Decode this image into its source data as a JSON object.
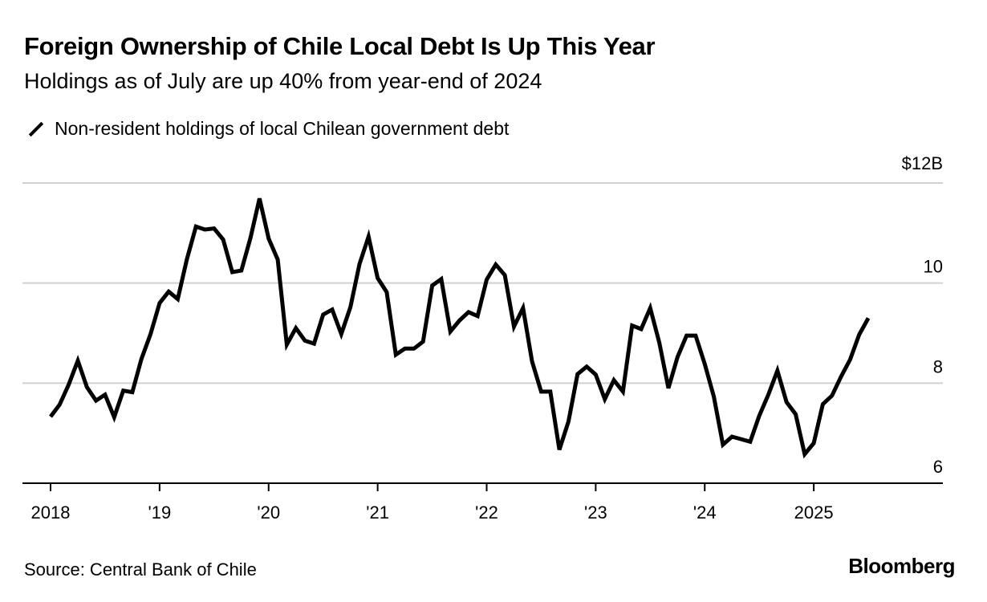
{
  "header": {
    "title": "Foreign Ownership of Chile Local Debt Is Up This Year",
    "subtitle": "Holdings as of July are up 40% from year-end of 2024"
  },
  "legend": {
    "label": "Non-resident holdings of local Chilean government debt"
  },
  "footer": {
    "source": "Source: Central Bank of Chile",
    "brand": "Bloomberg"
  },
  "chart_data": {
    "type": "line",
    "title": "Foreign Ownership of Chile Local Debt Is Up This Year",
    "subtitle": "Holdings as of July are up 40% from year-end of 2024",
    "xlabel": "",
    "ylabel": "",
    "ylim": [
      6,
      12
    ],
    "xlim": [
      "2018-01",
      "2026-05"
    ],
    "grid": true,
    "legend_position": "top-left",
    "line_color": "#000000",
    "y_ticks": [
      {
        "value": 12,
        "label": "$12B"
      },
      {
        "value": 10,
        "label": "10"
      },
      {
        "value": 8,
        "label": "8"
      },
      {
        "value": 6,
        "label": "6"
      }
    ],
    "x_ticks": [
      {
        "date": "2018-01",
        "label": "2018"
      },
      {
        "date": "2019-01",
        "label": "'19"
      },
      {
        "date": "2020-01",
        "label": "'20"
      },
      {
        "date": "2021-01",
        "label": "'21"
      },
      {
        "date": "2022-01",
        "label": "'22"
      },
      {
        "date": "2023-01",
        "label": "'23"
      },
      {
        "date": "2024-01",
        "label": "'24"
      },
      {
        "date": "2025-01",
        "label": "2025"
      }
    ],
    "series": [
      {
        "name": "Non-resident holdings of local Chilean government debt",
        "points": [
          [
            "2018-01",
            7.33
          ],
          [
            "2018-02",
            7.57
          ],
          [
            "2018-03",
            7.97
          ],
          [
            "2018-04",
            8.45
          ],
          [
            "2018-05",
            7.92
          ],
          [
            "2018-06",
            7.65
          ],
          [
            "2018-07",
            7.77
          ],
          [
            "2018-08",
            7.32
          ],
          [
            "2018-09",
            7.85
          ],
          [
            "2018-10",
            7.82
          ],
          [
            "2018-11",
            8.48
          ],
          [
            "2018-12",
            8.98
          ],
          [
            "2019-01",
            9.6
          ],
          [
            "2019-02",
            9.83
          ],
          [
            "2019-03",
            9.68
          ],
          [
            "2019-04",
            10.47
          ],
          [
            "2019-05",
            11.13
          ],
          [
            "2019-06",
            11.07
          ],
          [
            "2019-07",
            11.09
          ],
          [
            "2019-08",
            10.87
          ],
          [
            "2019-09",
            10.22
          ],
          [
            "2019-10",
            10.25
          ],
          [
            "2019-11",
            10.9
          ],
          [
            "2019-12",
            11.69
          ],
          [
            "2020-01",
            10.89
          ],
          [
            "2020-02",
            10.47
          ],
          [
            "2020-03",
            8.77
          ],
          [
            "2020-04",
            9.1
          ],
          [
            "2020-05",
            8.85
          ],
          [
            "2020-06",
            8.79
          ],
          [
            "2020-07",
            9.37
          ],
          [
            "2020-08",
            9.47
          ],
          [
            "2020-09",
            8.98
          ],
          [
            "2020-10",
            9.52
          ],
          [
            "2020-11",
            10.38
          ],
          [
            "2020-12",
            10.93
          ],
          [
            "2021-01",
            10.1
          ],
          [
            "2021-02",
            9.82
          ],
          [
            "2021-03",
            8.57
          ],
          [
            "2021-04",
            8.69
          ],
          [
            "2021-05",
            8.69
          ],
          [
            "2021-06",
            8.83
          ],
          [
            "2021-07",
            9.95
          ],
          [
            "2021-08",
            10.08
          ],
          [
            "2021-09",
            9.03
          ],
          [
            "2021-10",
            9.25
          ],
          [
            "2021-11",
            9.42
          ],
          [
            "2021-12",
            9.34
          ],
          [
            "2022-01",
            10.07
          ],
          [
            "2022-02",
            10.37
          ],
          [
            "2022-03",
            10.16
          ],
          [
            "2022-04",
            9.13
          ],
          [
            "2022-05",
            9.5
          ],
          [
            "2022-06",
            8.43
          ],
          [
            "2022-07",
            7.83
          ],
          [
            "2022-08",
            7.83
          ],
          [
            "2022-09",
            6.67
          ],
          [
            "2022-10",
            7.23
          ],
          [
            "2022-11",
            8.18
          ],
          [
            "2022-12",
            8.33
          ],
          [
            "2023-01",
            8.17
          ],
          [
            "2023-02",
            7.68
          ],
          [
            "2023-03",
            8.06
          ],
          [
            "2023-04",
            7.83
          ],
          [
            "2023-05",
            9.15
          ],
          [
            "2023-06",
            9.08
          ],
          [
            "2023-07",
            9.5
          ],
          [
            "2023-08",
            8.81
          ],
          [
            "2023-09",
            7.9
          ],
          [
            "2023-10",
            8.52
          ],
          [
            "2023-11",
            8.95
          ],
          [
            "2023-12",
            8.95
          ],
          [
            "2024-01",
            8.38
          ],
          [
            "2024-02",
            7.73
          ],
          [
            "2024-03",
            6.77
          ],
          [
            "2024-04",
            6.93
          ],
          [
            "2024-05",
            6.88
          ],
          [
            "2024-06",
            6.83
          ],
          [
            "2024-07",
            7.35
          ],
          [
            "2024-08",
            7.77
          ],
          [
            "2024-09",
            8.25
          ],
          [
            "2024-10",
            7.62
          ],
          [
            "2024-11",
            7.38
          ],
          [
            "2024-12",
            6.58
          ],
          [
            "2025-01",
            6.8
          ],
          [
            "2025-02",
            7.58
          ],
          [
            "2025-03",
            7.75
          ],
          [
            "2025-04",
            8.13
          ],
          [
            "2025-05",
            8.47
          ],
          [
            "2025-06",
            8.97
          ],
          [
            "2025-07",
            9.3
          ]
        ]
      }
    ]
  }
}
